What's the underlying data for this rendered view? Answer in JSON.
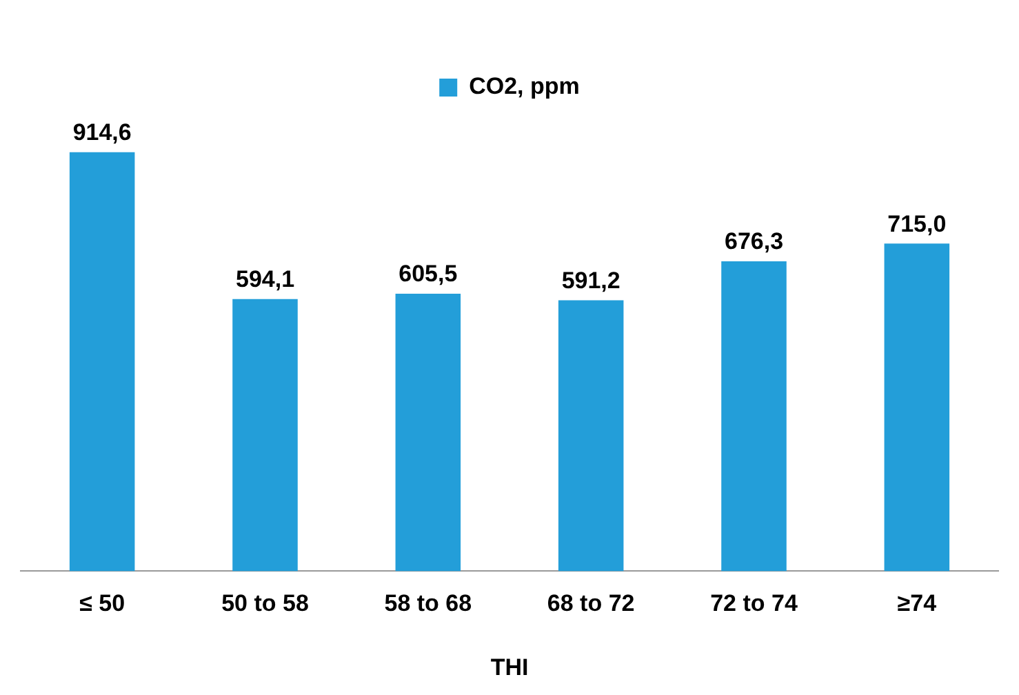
{
  "chart_data": {
    "type": "bar",
    "xlabel": "THI",
    "categories": [
      "≤ 50",
      "50 to 58",
      "58 to 68",
      "68 to 72",
      "72 to 74",
      "≥74"
    ],
    "series": [
      {
        "name": "CO2, ppm",
        "color": "#239ed9",
        "values": [
          914.6,
          594.1,
          605.5,
          591.2,
          676.3,
          715.0
        ],
        "value_labels": [
          "914,6",
          "594,1",
          "605,5",
          "591,2",
          "676,3",
          "715,0"
        ]
      }
    ],
    "legend": "top",
    "grid": false
  }
}
